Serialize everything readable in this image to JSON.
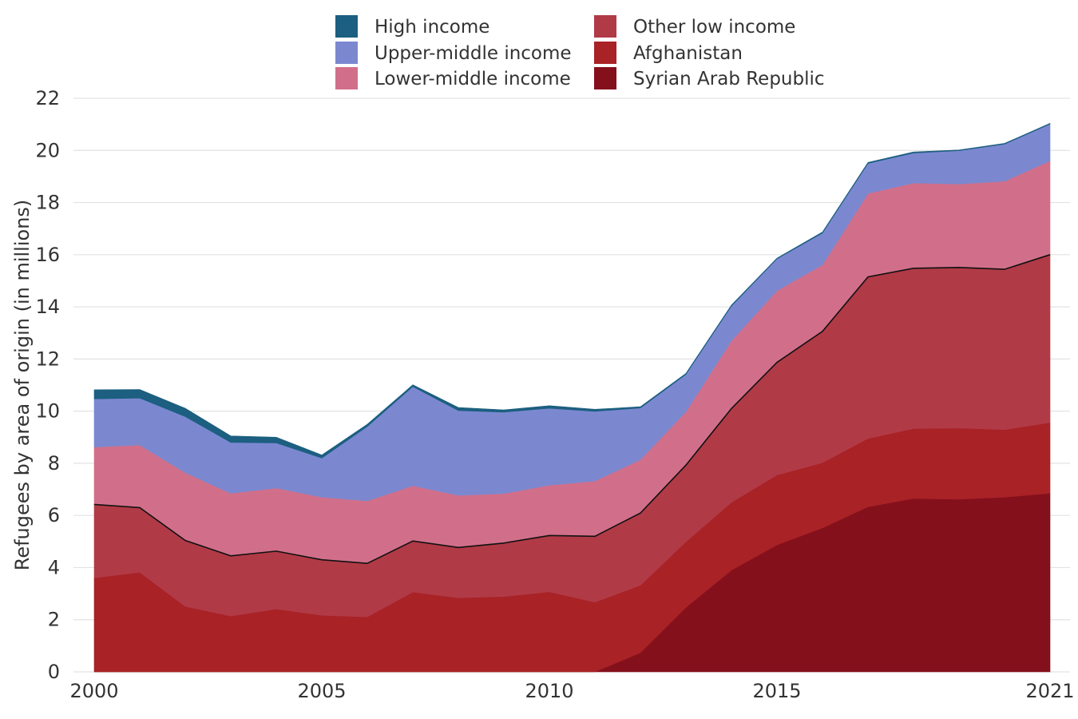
{
  "chart_data": {
    "type": "area",
    "stacked": true,
    "x": [
      2000,
      2001,
      2002,
      2003,
      2004,
      2005,
      2006,
      2007,
      2008,
      2009,
      2010,
      2011,
      2012,
      2013,
      2014,
      2015,
      2016,
      2017,
      2018,
      2019,
      2020,
      2021
    ],
    "ylabel": "Refugees by area of origin (in millions)",
    "xlabel": "",
    "ylim": [
      0,
      22
    ],
    "xlim": [
      2000,
      2021
    ],
    "yticks": [
      "0",
      "2",
      "4",
      "6",
      "8",
      "10",
      "12",
      "14",
      "16",
      "18",
      "20",
      "22"
    ],
    "xticks": [
      "2000",
      "2005",
      "2010",
      "2015",
      "2021"
    ],
    "grid": "horizontal",
    "legend_position": "top",
    "series": [
      {
        "name": "Syrian Arab Republic",
        "color": "#84101c",
        "values": [
          0,
          0,
          0,
          0,
          0,
          0,
          0,
          0,
          0,
          0,
          0,
          0,
          0.73,
          2.47,
          3.9,
          4.87,
          5.52,
          6.33,
          6.65,
          6.62,
          6.7,
          6.85
        ]
      },
      {
        "name": "Afghanistan",
        "color": "#a82226",
        "values": [
          3.6,
          3.82,
          2.51,
          2.14,
          2.41,
          2.17,
          2.11,
          3.06,
          2.84,
          2.89,
          3.07,
          2.67,
          2.59,
          2.52,
          2.6,
          2.68,
          2.5,
          2.62,
          2.68,
          2.73,
          2.59,
          2.71
        ]
      },
      {
        "name": "Other low income",
        "color": "#b13a47",
        "values": [
          2.82,
          2.48,
          2.53,
          2.31,
          2.22,
          2.13,
          2.05,
          1.96,
          1.93,
          2.05,
          2.16,
          2.53,
          2.77,
          2.94,
          3.6,
          4.32,
          5.04,
          6.2,
          6.15,
          6.16,
          6.15,
          6.44
        ]
      },
      {
        "name": "Lower-middle income",
        "color": "#d16f8a",
        "values": [
          2.2,
          2.4,
          2.6,
          2.4,
          2.42,
          2.4,
          2.4,
          2.12,
          2.0,
          1.9,
          1.93,
          2.12,
          2.05,
          2.05,
          2.6,
          2.75,
          2.55,
          3.2,
          3.27,
          3.2,
          3.38,
          3.6
        ]
      },
      {
        "name": "Upper-middle income",
        "color": "#7b88d0",
        "values": [
          1.85,
          1.8,
          2.15,
          1.95,
          1.73,
          1.5,
          2.85,
          3.8,
          3.25,
          3.12,
          2.95,
          2.67,
          1.98,
          1.43,
          1.33,
          1.22,
          1.22,
          1.15,
          1.15,
          1.28,
          1.42,
          1.41
        ]
      },
      {
        "name": "High income",
        "color": "#1c5f80",
        "values": [
          0.35,
          0.33,
          0.32,
          0.25,
          0.22,
          0.12,
          0.09,
          0.07,
          0.12,
          0.09,
          0.1,
          0.08,
          0.05,
          0.04,
          0.04,
          0.03,
          0.04,
          0.04,
          0.04,
          0.03,
          0.03,
          0.03
        ]
      }
    ],
    "legend_order": [
      "High income",
      "Upper-middle income",
      "Lower-middle income",
      "Other low income",
      "Afghanistan",
      "Syrian Arab Republic"
    ],
    "outline_top_of": "Other low income"
  }
}
